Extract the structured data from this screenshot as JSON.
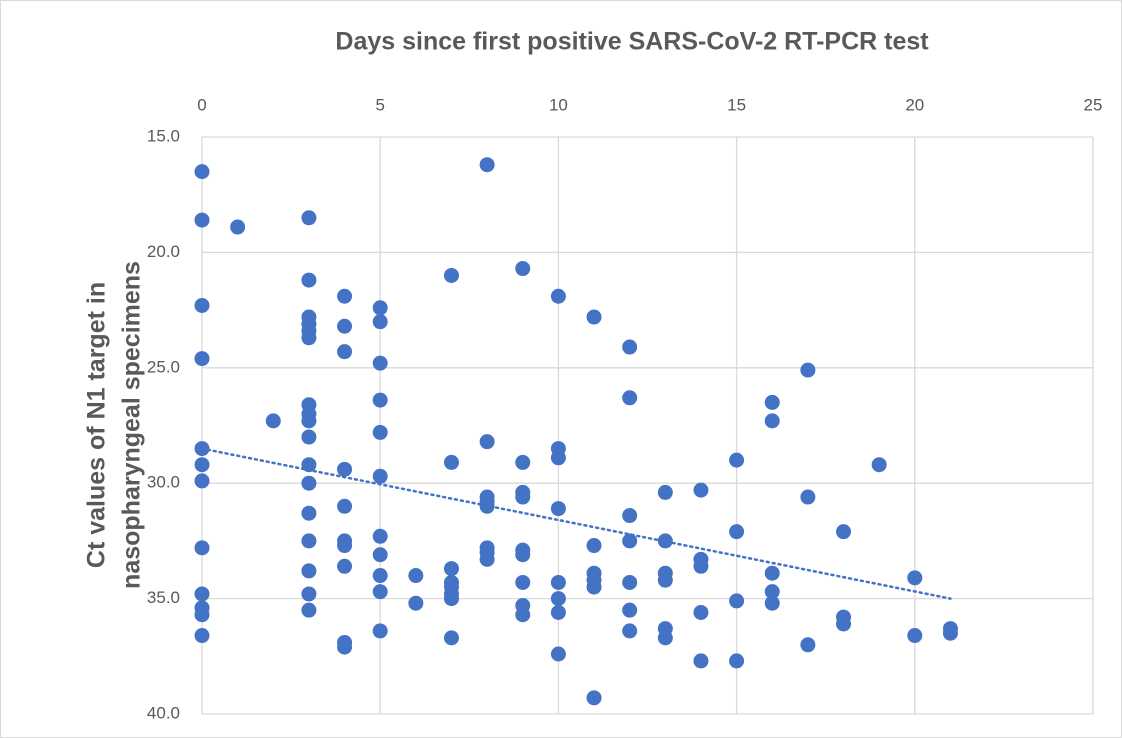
{
  "chart_data": {
    "type": "scatter",
    "title": "Days since first positive SARS-CoV-2 RT-PCR test",
    "ylabel": [
      "Ct values of N1 target in",
      "nasopharyngeal specimens"
    ],
    "xlim": [
      0,
      25
    ],
    "xticks": [
      0,
      5,
      10,
      15,
      20,
      25
    ],
    "ylim": [
      15,
      40
    ],
    "y_inverted": true,
    "x_axis_position": "top",
    "yticks": [
      {
        "value": 15,
        "label": "15.0"
      },
      {
        "value": 20,
        "label": "20.0"
      },
      {
        "value": 25,
        "label": "25.0"
      },
      {
        "value": 30,
        "label": "30.0"
      },
      {
        "value": 35,
        "label": "35.0"
      },
      {
        "value": 40,
        "label": "40.0"
      }
    ],
    "grid": true,
    "color": "#4472c4",
    "x": [
      0,
      0,
      0,
      0,
      0,
      0,
      0,
      0,
      0,
      0,
      0,
      0,
      1,
      2,
      3,
      3,
      3,
      3,
      3,
      3,
      3,
      3,
      3,
      3,
      3,
      3,
      3,
      3,
      3,
      3,
      3,
      4,
      4,
      4,
      4,
      4,
      4,
      4,
      4,
      4,
      4,
      5,
      5,
      5,
      5,
      5,
      5,
      5,
      5,
      5,
      5,
      5,
      6,
      6,
      7,
      7,
      7,
      7,
      7,
      7,
      7,
      7,
      8,
      8,
      8,
      8,
      8,
      8,
      8,
      8,
      9,
      9,
      9,
      9,
      9,
      9,
      9,
      9,
      9,
      10,
      10,
      10,
      10,
      10,
      10,
      10,
      10,
      11,
      11,
      11,
      11,
      11,
      11,
      12,
      12,
      12,
      12,
      12,
      12,
      12,
      13,
      13,
      13,
      13,
      13,
      13,
      14,
      14,
      14,
      14,
      14,
      15,
      15,
      15,
      15,
      16,
      16,
      16,
      16,
      16,
      17,
      17,
      17,
      18,
      18,
      18,
      19,
      20,
      20,
      21,
      21
    ],
    "y": [
      16.5,
      18.6,
      22.3,
      24.6,
      28.5,
      29.2,
      29.9,
      32.8,
      34.8,
      35.4,
      35.7,
      36.6,
      18.9,
      27.3,
      18.5,
      21.2,
      22.8,
      23.1,
      23.4,
      23.7,
      26.6,
      27.0,
      27.3,
      28.0,
      29.2,
      30.0,
      31.3,
      32.5,
      33.8,
      34.8,
      35.5,
      21.9,
      23.2,
      24.3,
      29.4,
      31.0,
      32.5,
      32.7,
      33.6,
      36.9,
      37.1,
      22.4,
      23.0,
      24.8,
      26.4,
      27.8,
      29.7,
      32.3,
      33.1,
      34.0,
      34.7,
      36.4,
      34.0,
      35.2,
      21.0,
      29.1,
      33.7,
      34.3,
      34.5,
      34.8,
      35.0,
      36.7,
      16.2,
      28.2,
      30.6,
      30.8,
      31.0,
      32.8,
      33.0,
      33.3,
      20.7,
      29.1,
      30.4,
      30.6,
      32.9,
      33.1,
      34.3,
      35.3,
      35.7,
      21.9,
      28.5,
      28.9,
      31.1,
      34.3,
      35.0,
      35.6,
      37.4,
      22.8,
      32.7,
      33.9,
      34.2,
      34.5,
      39.3,
      24.1,
      26.3,
      31.4,
      32.5,
      34.3,
      35.5,
      36.4,
      30.4,
      32.5,
      33.9,
      34.2,
      36.3,
      36.7,
      30.3,
      33.3,
      33.6,
      35.6,
      37.7,
      29.0,
      32.1,
      35.1,
      37.7,
      26.5,
      27.3,
      33.9,
      34.7,
      35.2,
      25.1,
      30.6,
      37.0,
      32.1,
      35.8,
      36.1,
      29.2,
      34.1,
      36.6,
      36.3,
      36.5
    ],
    "trendline": {
      "x": [
        0,
        21
      ],
      "y": [
        28.5,
        35.0
      ]
    }
  }
}
